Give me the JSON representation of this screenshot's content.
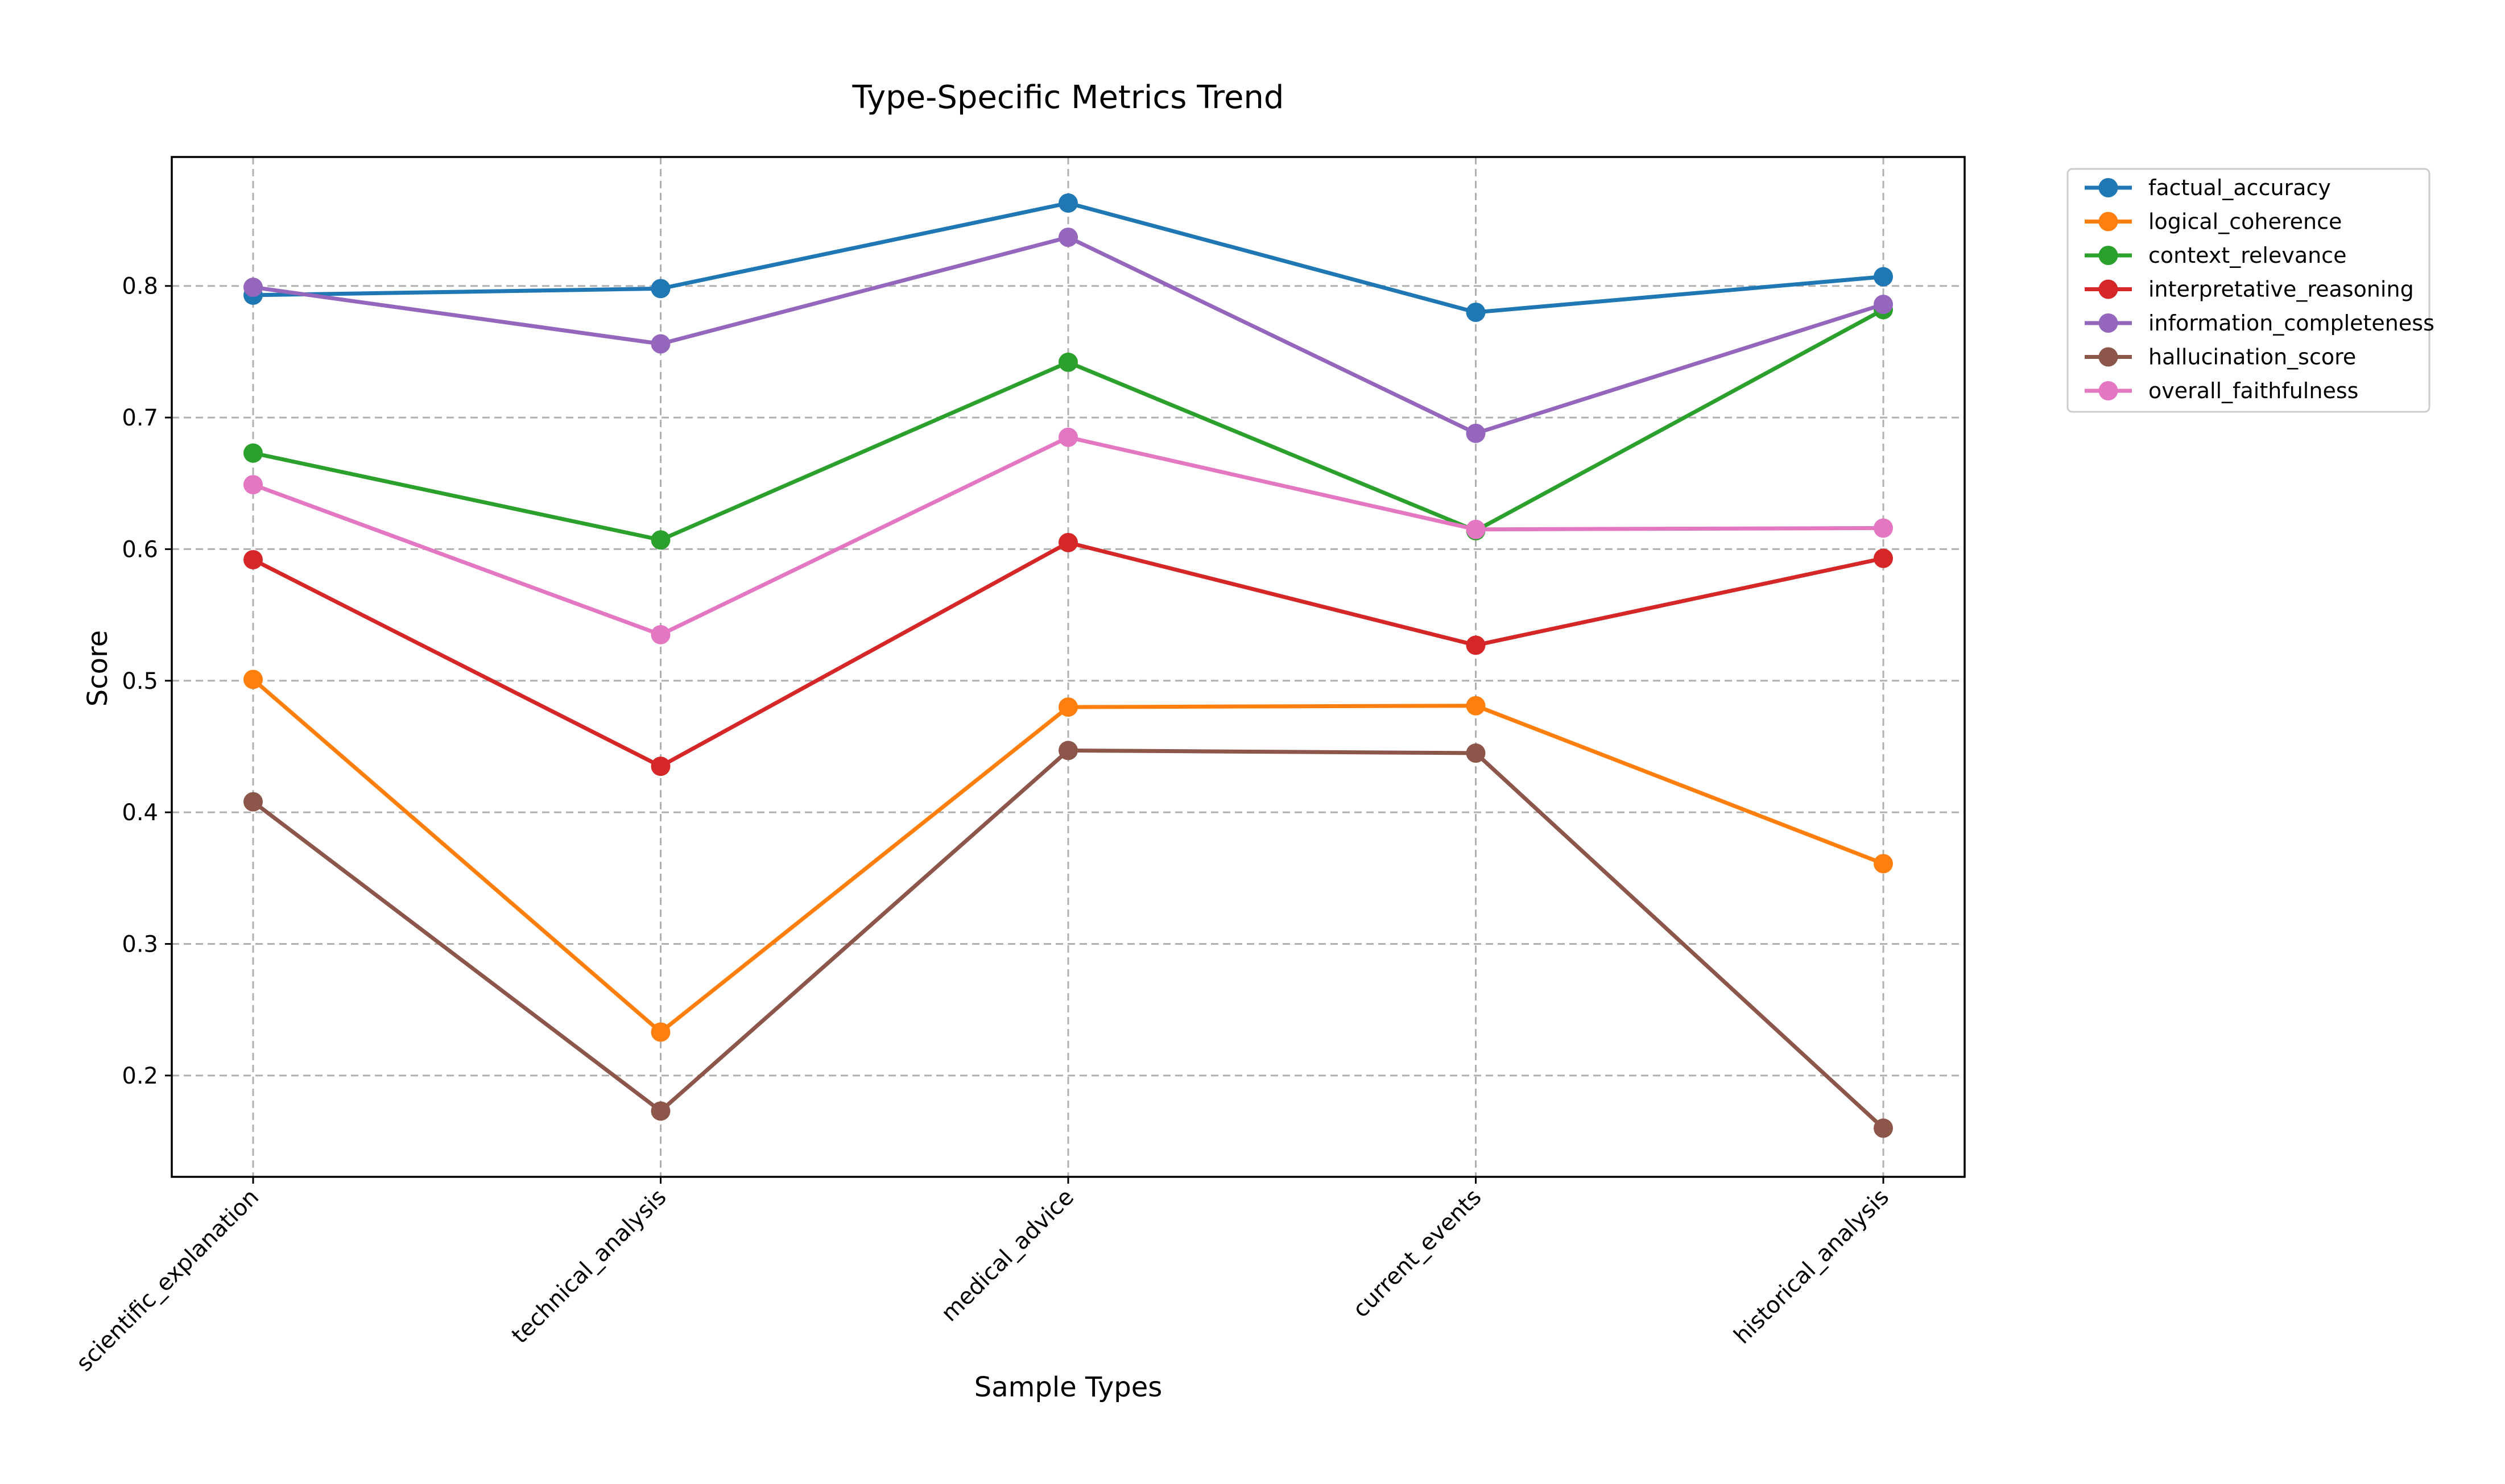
{
  "chart_data": {
    "type": "line",
    "title": "Type-Specific Metrics Trend",
    "xlabel": "Sample Types",
    "ylabel": "Score",
    "categories": [
      "scientific_explanation",
      "technical_analysis",
      "medical_advice",
      "current_events",
      "historical_analysis"
    ],
    "ylim": [
      0.123,
      0.898
    ],
    "yticks": [
      0.2,
      0.3,
      0.4,
      0.5,
      0.6,
      0.7,
      0.8
    ],
    "grid": true,
    "legend_position": "outside top-right",
    "series": [
      {
        "name": "factual_accuracy",
        "color": "#1f77b4",
        "values": [
          0.793,
          0.798,
          0.863,
          0.78,
          0.807
        ]
      },
      {
        "name": "logical_coherence",
        "color": "#ff7f0e",
        "values": [
          0.501,
          0.233,
          0.48,
          0.481,
          0.361
        ]
      },
      {
        "name": "context_relevance",
        "color": "#2ca02c",
        "values": [
          0.673,
          0.607,
          0.742,
          0.614,
          0.782
        ]
      },
      {
        "name": "interpretative_reasoning",
        "color": "#d62728",
        "values": [
          0.592,
          0.435,
          0.605,
          0.527,
          0.593
        ]
      },
      {
        "name": "information_completeness",
        "color": "#9467bd",
        "values": [
          0.799,
          0.756,
          0.837,
          0.688,
          0.786
        ]
      },
      {
        "name": "hallucination_score",
        "color": "#8c564b",
        "values": [
          0.408,
          0.173,
          0.447,
          0.445,
          0.16
        ]
      },
      {
        "name": "overall_faithfulness",
        "color": "#e377c2",
        "values": [
          0.649,
          0.535,
          0.685,
          0.615,
          0.616
        ]
      }
    ]
  }
}
